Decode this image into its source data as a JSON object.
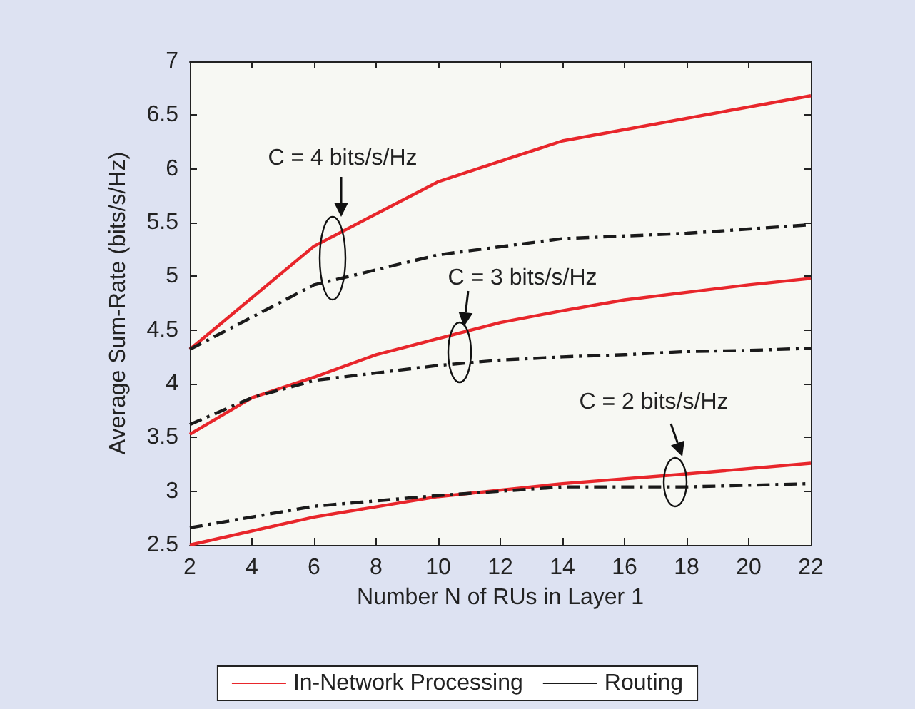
{
  "chart_data": {
    "type": "line",
    "xlabel": "Number N of RUs in Layer 1",
    "ylabel": "Average Sum-Rate (bits/s/Hz)",
    "xlim": [
      2,
      22
    ],
    "xticks": [
      2,
      4,
      6,
      8,
      10,
      12,
      14,
      16,
      18,
      20,
      22
    ],
    "ylim": [
      2.5,
      7
    ],
    "yticks": [
      2.5,
      3,
      3.5,
      4,
      4.5,
      5,
      5.5,
      6,
      6.5,
      7
    ],
    "grid": false,
    "legend": "bottom",
    "marker": "none",
    "series": [
      {
        "name": "In-Network Processing",
        "color": "#e8262b",
        "line_style": "solid",
        "x": [
          2,
          6,
          10,
          14,
          18,
          22
        ],
        "values": [
          4.32,
          5.28,
          5.88,
          6.26,
          6.47,
          6.68
        ]
      },
      {
        "name": "Routing",
        "color": "#1a1a1a",
        "line_style": "dashdot",
        "x": [
          2,
          6,
          10,
          14,
          18,
          22
        ],
        "values": [
          4.32,
          4.92,
          5.2,
          5.35,
          5.4,
          5.48
        ]
      },
      {
        "color": "#e8262b",
        "line_style": "solid",
        "x": [
          2,
          4,
          6,
          8,
          10,
          12,
          14,
          16,
          18,
          20,
          22
        ],
        "values": [
          3.53,
          3.87,
          4.06,
          4.27,
          4.42,
          4.57,
          4.68,
          4.78,
          4.85,
          4.92,
          4.98
        ]
      },
      {
        "color": "#1a1a1a",
        "line_style": "dashdot",
        "x": [
          2,
          4,
          6,
          8,
          10,
          12,
          14,
          16,
          18,
          20,
          22
        ],
        "values": [
          3.62,
          3.87,
          4.03,
          4.1,
          4.17,
          4.22,
          4.25,
          4.27,
          4.3,
          4.31,
          4.33
        ]
      },
      {
        "color": "#e8262b",
        "line_style": "solid",
        "x": [
          2,
          6,
          10,
          14,
          18,
          22
        ],
        "values": [
          2.5,
          2.76,
          2.95,
          3.07,
          3.16,
          3.26
        ]
      },
      {
        "color": "#1a1a1a",
        "line_style": "dashdot",
        "x": [
          2,
          6,
          10,
          14,
          18,
          22
        ],
        "values": [
          2.66,
          2.86,
          2.96,
          3.04,
          3.04,
          3.07
        ]
      }
    ],
    "annotations": [
      "C = 4 bits/s/Hz",
      "C = 3 bits/s/Hz",
      "C = 2 bits/s/Hz"
    ]
  }
}
